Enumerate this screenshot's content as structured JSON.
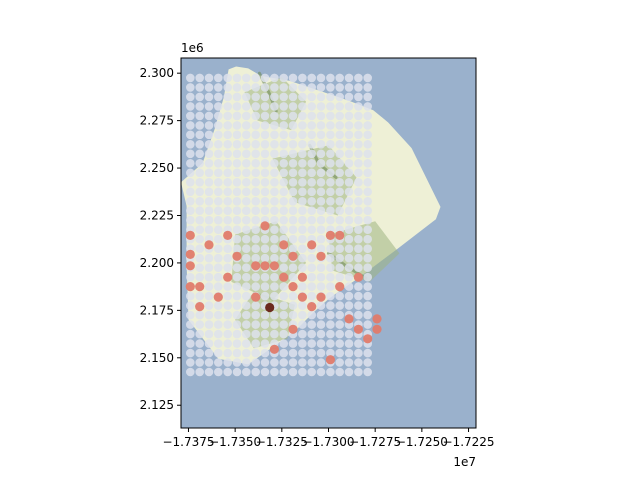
{
  "chart_data": {
    "type": "scatter",
    "title": "",
    "xlabel": "",
    "ylabel": "",
    "x_offset_label": "1e7",
    "y_offset_label": "1e6",
    "xlim": [
      -1.7379,
      -1.7221
    ],
    "ylim": [
      2.113,
      2.308
    ],
    "x_tick_values": [
      -1.7375,
      -1.735,
      -1.7325,
      -1.73,
      -1.7275,
      -1.725,
      -1.7225
    ],
    "x_tick_labels": [
      "−1.7375",
      "−1.7350",
      "−1.7325",
      "−1.7300",
      "−1.7275",
      "−1.7250",
      "−1.7225"
    ],
    "y_tick_values": [
      2.125,
      2.15,
      2.175,
      2.2,
      2.225,
      2.25,
      2.275,
      2.3
    ],
    "y_tick_labels": [
      "2.125",
      "2.150",
      "2.175",
      "2.200",
      "2.225",
      "2.250",
      "2.275",
      "2.300"
    ],
    "grid": false,
    "basemap": {
      "description": "island terrain basemap",
      "water_color": "#9ab1cc",
      "land_color": "#eef0d6",
      "vegetation_color": "#9fb582",
      "ridge_color": "#6f8a5a",
      "island_outline": [
        [
          -1.73495,
          2.3035
        ],
        [
          -1.7343,
          2.3025
        ],
        [
          -1.7336,
          2.2985
        ],
        [
          -1.7321,
          2.296
        ],
        [
          -1.7304,
          2.2905
        ],
        [
          -1.7289,
          2.2855
        ],
        [
          -1.7276,
          2.2805
        ],
        [
          -1.7268,
          2.274
        ],
        [
          -1.72555,
          2.2605
        ],
        [
          -1.724,
          2.2295
        ],
        [
          -1.72425,
          2.223
        ],
        [
          -1.7263,
          2.2075
        ],
        [
          -1.7284,
          2.192
        ],
        [
          -1.7293,
          2.186
        ],
        [
          -1.73,
          2.181
        ],
        [
          -1.7308,
          2.174
        ],
        [
          -1.7318,
          2.164
        ],
        [
          -1.7333,
          2.1535
        ],
        [
          -1.7343,
          2.1465
        ],
        [
          -1.7359,
          2.1495
        ],
        [
          -1.7375,
          2.17
        ],
        [
          -1.7376,
          2.1995
        ],
        [
          -1.7376,
          2.23
        ],
        [
          -1.7379,
          2.2425
        ],
        [
          -1.73675,
          2.2525
        ],
        [
          -1.7361,
          2.2705
        ],
        [
          -1.7356,
          2.2875
        ],
        [
          -1.73535,
          2.302
        ]
      ],
      "vegetation_patches": [
        [
          [
            -1.7345,
            2.29
          ],
          [
            -1.7325,
            2.298
          ],
          [
            -1.7312,
            2.285
          ],
          [
            -1.732,
            2.27
          ],
          [
            -1.7338,
            2.275
          ]
        ],
        [
          [
            -1.733,
            2.255
          ],
          [
            -1.73,
            2.262
          ],
          [
            -1.7285,
            2.245
          ],
          [
            -1.7295,
            2.225
          ],
          [
            -1.7318,
            2.232
          ]
        ],
        [
          [
            -1.735,
            2.215
          ],
          [
            -1.7328,
            2.222
          ],
          [
            -1.7312,
            2.2
          ],
          [
            -1.733,
            2.18
          ],
          [
            -1.7352,
            2.19
          ]
        ],
        [
          [
            -1.73,
            2.215
          ],
          [
            -1.7275,
            2.222
          ],
          [
            -1.7262,
            2.205
          ],
          [
            -1.7278,
            2.19
          ],
          [
            -1.7298,
            2.196
          ]
        ],
        [
          [
            -1.734,
            2.185
          ],
          [
            -1.7318,
            2.178
          ],
          [
            -1.7322,
            2.16
          ],
          [
            -1.734,
            2.155
          ],
          [
            -1.735,
            2.17
          ]
        ]
      ],
      "ridges": [
        [
          [
            -1.7337,
            2.3
          ],
          [
            -1.7332,
            2.29
          ],
          [
            -1.7328,
            2.28
          ]
        ],
        [
          [
            -1.731,
            2.262
          ],
          [
            -1.7305,
            2.252
          ],
          [
            -1.7296,
            2.245
          ]
        ],
        [
          [
            -1.73,
            2.205
          ],
          [
            -1.729,
            2.198
          ],
          [
            -1.728,
            2.192
          ]
        ]
      ]
    },
    "grid_points": {
      "name": "",
      "color": "#dde2ec",
      "opacity": 0.85,
      "x_start": -1.7374,
      "x_step": 0.0005,
      "x_count": 20,
      "y_start": 2.1425,
      "y_step": 0.005,
      "y_count": 32
    },
    "highlight_points": {
      "name": "",
      "color": "#e07b6a",
      "points": [
        [
          -1.7374,
          2.2145
        ],
        [
          -1.7374,
          2.2045
        ],
        [
          -1.7374,
          2.1985
        ],
        [
          -1.7374,
          2.1875
        ],
        [
          -1.7369,
          2.1875
        ],
        [
          -1.7369,
          2.177
        ],
        [
          -1.7364,
          2.2095
        ],
        [
          -1.7359,
          2.182
        ],
        [
          -1.7354,
          2.2145
        ],
        [
          -1.7354,
          2.1925
        ],
        [
          -1.7349,
          2.2035
        ],
        [
          -1.7339,
          2.1985
        ],
        [
          -1.7339,
          2.182
        ],
        [
          -1.7334,
          2.1985
        ],
        [
          -1.7334,
          2.2195
        ],
        [
          -1.7329,
          2.1985
        ],
        [
          -1.7329,
          2.1545
        ],
        [
          -1.7324,
          2.2095
        ],
        [
          -1.7324,
          2.1925
        ],
        [
          -1.7319,
          2.2035
        ],
        [
          -1.7319,
          2.1875
        ],
        [
          -1.7319,
          2.165
        ],
        [
          -1.7314,
          2.1925
        ],
        [
          -1.7314,
          2.182
        ],
        [
          -1.7309,
          2.2095
        ],
        [
          -1.7309,
          2.177
        ],
        [
          -1.7304,
          2.2035
        ],
        [
          -1.7304,
          2.182
        ],
        [
          -1.7299,
          2.2145
        ],
        [
          -1.7299,
          2.149
        ],
        [
          -1.7294,
          2.2145
        ],
        [
          -1.7294,
          2.1875
        ],
        [
          -1.7289,
          2.1705
        ],
        [
          -1.7284,
          2.1925
        ],
        [
          -1.7284,
          2.165
        ],
        [
          -1.7279,
          2.16
        ],
        [
          -1.7274,
          2.1705
        ],
        [
          -1.7274,
          2.165
        ]
      ]
    },
    "dark_point": {
      "name": "",
      "color": "#6b2a1f",
      "point": [
        -1.73315,
        2.1765
      ]
    }
  }
}
